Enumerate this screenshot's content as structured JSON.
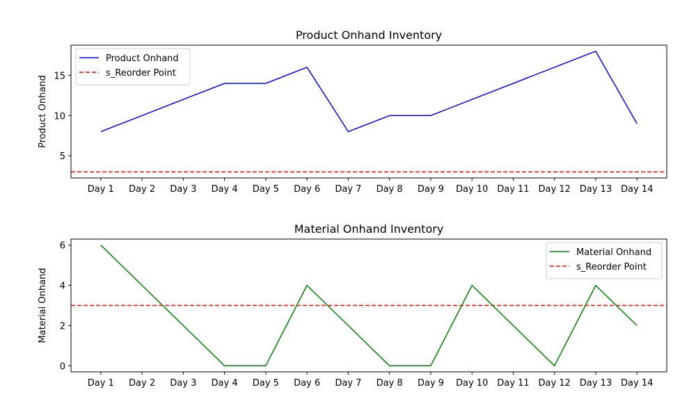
{
  "chart_data": [
    {
      "type": "line",
      "title": "Product Onhand Inventory",
      "xlabel": "",
      "ylabel": "Product Onhand",
      "categories": [
        "Day 1",
        "Day 2",
        "Day 3",
        "Day 4",
        "Day 5",
        "Day 6",
        "Day 7",
        "Day 8",
        "Day 9",
        "Day 10",
        "Day 11",
        "Day 12",
        "Day 13",
        "Day 14"
      ],
      "ylim": [
        2.25,
        18.75
      ],
      "yticks": [
        5,
        10,
        15
      ],
      "series": [
        {
          "name": "Product Onhand",
          "color": "#0000ff",
          "style": "solid",
          "values": [
            8,
            10,
            12,
            14,
            14,
            16,
            8,
            10,
            10,
            12,
            14,
            16,
            18,
            9
          ]
        }
      ],
      "reference_line": {
        "name": "s_Reorder Point",
        "color": "#ff0000",
        "style": "dashed",
        "value": 3
      },
      "legend": "top-left",
      "grid": false
    },
    {
      "type": "line",
      "title": "Material Onhand Inventory",
      "xlabel": "",
      "ylabel": "Material Onhand",
      "categories": [
        "Day 1",
        "Day 2",
        "Day 3",
        "Day 4",
        "Day 5",
        "Day 6",
        "Day 7",
        "Day 8",
        "Day 9",
        "Day 10",
        "Day 11",
        "Day 12",
        "Day 13",
        "Day 14"
      ],
      "ylim": [
        -0.3,
        6.3
      ],
      "yticks": [
        0,
        2,
        4,
        6
      ],
      "series": [
        {
          "name": "Material Onhand",
          "color": "#008000",
          "style": "solid",
          "values": [
            6,
            4,
            2,
            0,
            0,
            4,
            2,
            0,
            0,
            4,
            2,
            0,
            4,
            2
          ]
        }
      ],
      "reference_line": {
        "name": "s_Reorder Point",
        "color": "#ff0000",
        "style": "dashed",
        "value": 3
      },
      "legend": "top-right",
      "grid": false
    }
  ]
}
